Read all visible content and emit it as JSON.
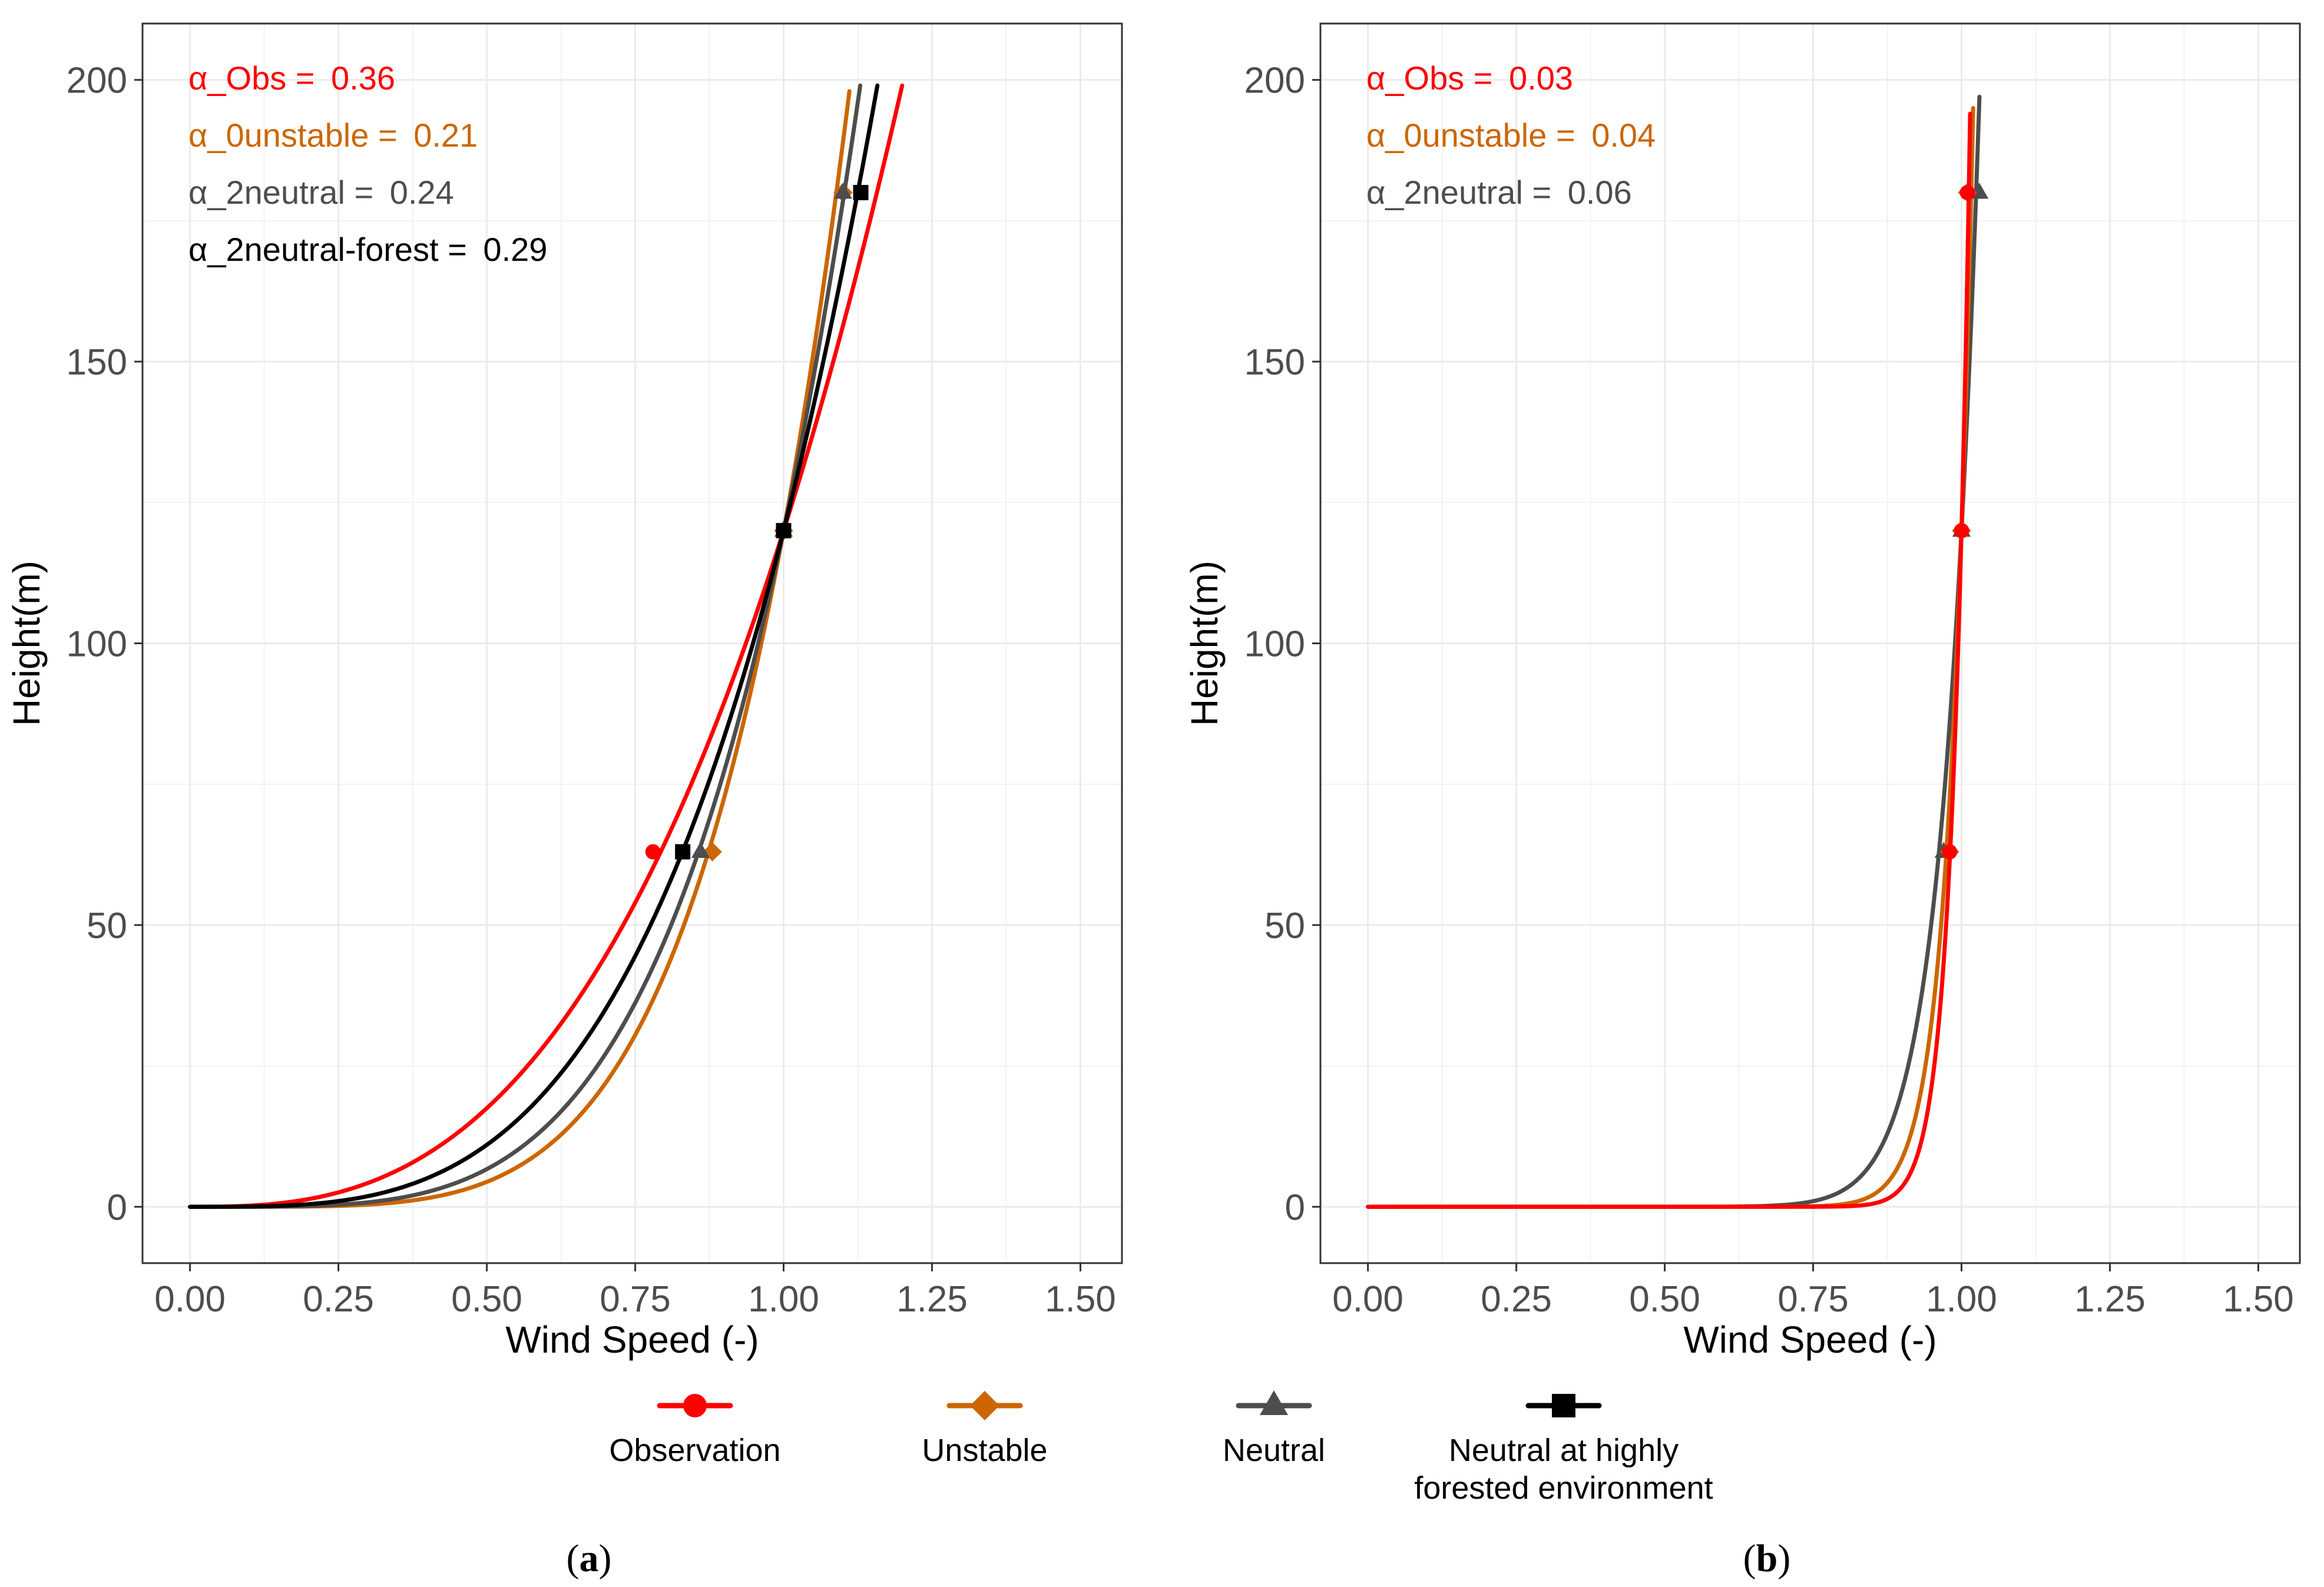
{
  "chart_data": [
    {
      "type": "line",
      "panel": "a",
      "xlabel": "Wind Speed (-)",
      "ylabel": "Height(m)",
      "xlim": [
        -0.08,
        1.57
      ],
      "ylim": [
        -10,
        210
      ],
      "xticks": [
        0,
        0.25,
        0.5,
        0.75,
        1.0,
        1.25,
        1.5
      ],
      "xtick_labels": [
        "0.00",
        "0.25",
        "0.50",
        "0.75",
        "1.00",
        "1.25",
        "1.50"
      ],
      "yticks": [
        0,
        50,
        100,
        150,
        200
      ],
      "ytick_labels": [
        "0",
        "50",
        "100",
        "150",
        "200"
      ],
      "grid": true,
      "reference": {
        "speed": 1.0,
        "height": 120
      },
      "series": [
        {
          "name": "Observation",
          "alpha": 0.36,
          "color": "#ff0000",
          "marker": "circle",
          "curve_top": 199,
          "points": [
            [
              0.78,
              63
            ],
            [
              1.0,
              120
            ],
            [
              1.13,
              180
            ]
          ]
        },
        {
          "name": "Unstable",
          "alpha": 0.21,
          "color": "#cc6600",
          "marker": "diamond",
          "curve_top": 198,
          "points": [
            [
              0.88,
              63
            ],
            [
              1.0,
              120
            ],
            [
              1.1,
              180
            ]
          ]
        },
        {
          "name": "Neutral",
          "alpha": 0.24,
          "color": "#4d4d4d",
          "marker": "triangle",
          "curve_top": 199,
          "points": [
            [
              0.86,
              63
            ],
            [
              1.0,
              120
            ],
            [
              1.1,
              180
            ]
          ]
        },
        {
          "name": "Neutral at highly forested environment",
          "alpha": 0.29,
          "color": "#000000",
          "marker": "square",
          "curve_top": 199,
          "points": [
            [
              0.83,
              63
            ],
            [
              1.0,
              120
            ],
            [
              1.13,
              180
            ]
          ]
        }
      ],
      "annotations": [
        {
          "prefix": "α_Obs = ",
          "value": "0.36",
          "color": "#ff0000"
        },
        {
          "prefix": "α_0unstable = ",
          "value": "0.21",
          "color": "#cc6600"
        },
        {
          "prefix": "α_2neutral = ",
          "value": "0.24",
          "color": "#4d4d4d"
        },
        {
          "prefix": "α_2neutral-forest = ",
          "value": "0.29",
          "color": "#000000"
        }
      ],
      "label": "(a)"
    },
    {
      "type": "line",
      "panel": "b",
      "xlabel": "Wind Speed (-)",
      "ylabel": "Height(m)",
      "xlim": [
        -0.08,
        1.57
      ],
      "ylim": [
        -10,
        210
      ],
      "xticks": [
        0,
        0.25,
        0.5,
        0.75,
        1.0,
        1.25,
        1.5
      ],
      "xtick_labels": [
        "0.00",
        "0.25",
        "0.50",
        "0.75",
        "1.00",
        "1.25",
        "1.50"
      ],
      "yticks": [
        0,
        50,
        100,
        150,
        200
      ],
      "ytick_labels": [
        "0",
        "50",
        "100",
        "150",
        "200"
      ],
      "grid": true,
      "reference": {
        "speed": 1.0,
        "height": 120
      },
      "series": [
        {
          "name": "Neutral",
          "alpha": 0.06,
          "color": "#4d4d4d",
          "marker": "triangle",
          "curve_top": 197,
          "points": [
            [
              0.97,
              63
            ],
            [
              1.0,
              120
            ],
            [
              1.03,
              180
            ]
          ]
        },
        {
          "name": "Unstable",
          "alpha": 0.04,
          "color": "#cc6600",
          "marker": "diamond",
          "curve_top": 195,
          "points": [
            [
              0.98,
              63
            ],
            [
              1.0,
              120
            ],
            [
              1.01,
              180
            ]
          ]
        },
        {
          "name": "Observation",
          "alpha": 0.03,
          "color": "#ff0000",
          "marker": "circle",
          "curve_top": 194,
          "points": [
            [
              0.98,
              63
            ],
            [
              1.0,
              120
            ],
            [
              1.01,
              180
            ]
          ]
        }
      ],
      "annotations": [
        {
          "prefix": "α_Obs = ",
          "value": "0.03",
          "color": "#ff0000"
        },
        {
          "prefix": "α_0unstable = ",
          "value": "0.04",
          "color": "#cc6600"
        },
        {
          "prefix": "α_2neutral = ",
          "value": "0.06",
          "color": "#4d4d4d"
        }
      ],
      "label": "(b)"
    }
  ],
  "legend": {
    "placement": "bottom-center",
    "items": [
      {
        "label_lines": [
          "Observation"
        ],
        "color": "#ff0000",
        "marker": "circle"
      },
      {
        "label_lines": [
          "Unstable"
        ],
        "color": "#cc6600",
        "marker": "diamond"
      },
      {
        "label_lines": [
          "Neutral"
        ],
        "color": "#4d4d4d",
        "marker": "triangle"
      },
      {
        "label_lines": [
          "Neutral at highly",
          "forested environment"
        ],
        "color": "#000000",
        "marker": "square"
      }
    ]
  }
}
